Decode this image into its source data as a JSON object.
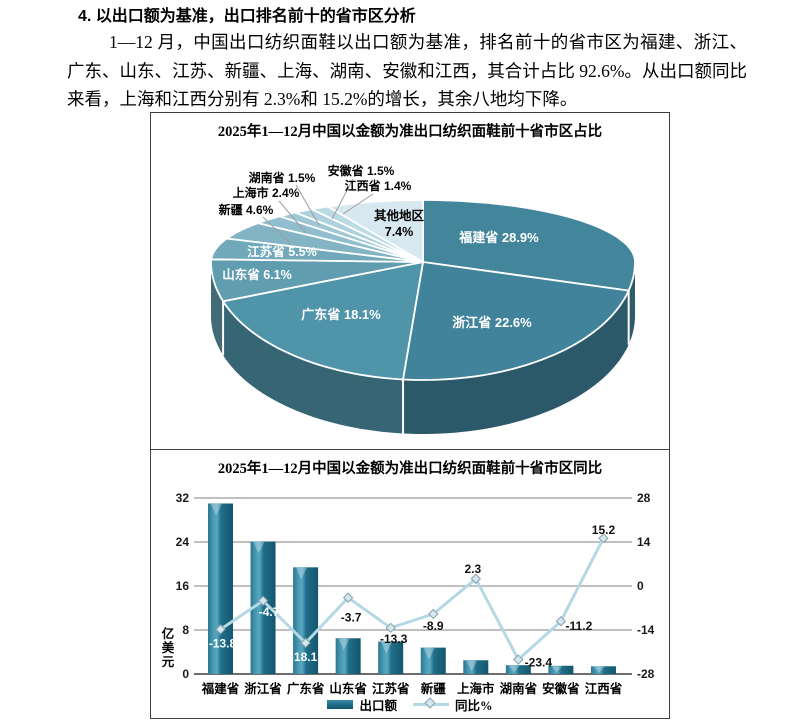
{
  "document": {
    "heading": "4. 以出口额为基准，出口排名前十的省市区分析",
    "paragraph": "1—12 月，中国出口纺织面鞋以出口额为基准，排名前十的省市区为福建、浙江、广东、山东、江苏、新疆、上海、湖南、安徽和江西，其合计占比 92.6%。从出口额同比来看，上海和江西分别有 2.3%和 15.2%的增长，其余八地均下降。"
  },
  "colors": {
    "bar_fill": "#1d6b85",
    "line_fill": "#b4d8e4",
    "grid": "#808080",
    "pie_palette": [
      "#43869c",
      "#40839a",
      "#5094aa",
      "#619db1",
      "#71a9bb",
      "#82b4c4",
      "#90bece",
      "#9fc8d5",
      "#aed1dd",
      "#bcdae4",
      "#d8e8f1"
    ]
  },
  "chart_data": [
    {
      "type": "pie",
      "style": "3d",
      "title": "2025年1—12月中国以金额为准出口纺织面鞋前十省市区占比",
      "unit": "%",
      "legend_position": "none",
      "slices": [
        {
          "label": "福建省",
          "value": 28.9
        },
        {
          "label": "浙江省",
          "value": 22.6
        },
        {
          "label": "广东省",
          "value": 18.1
        },
        {
          "label": "山东省",
          "value": 6.1
        },
        {
          "label": "江苏省",
          "value": 5.5
        },
        {
          "label": "新疆",
          "value": 4.6
        },
        {
          "label": "上海市",
          "value": 2.4
        },
        {
          "label": "湖南省",
          "value": 1.5
        },
        {
          "label": "安徽省",
          "value": 1.5
        },
        {
          "label": "江西省",
          "value": 1.4
        },
        {
          "label": "其他地区",
          "value": 7.4
        }
      ]
    },
    {
      "type": "bar",
      "subtype": "bar+line-two-axes",
      "title": "2025年1—12月中国以金额为准出口纺织面鞋前十省市区同比",
      "categories": [
        "福建省",
        "浙江省",
        "广东省",
        "山东省",
        "江苏省",
        "新疆",
        "上海市",
        "湖南省",
        "安徽省",
        "江西省"
      ],
      "series": [
        {
          "name": "出口额",
          "chart": "bar",
          "axis": "left",
          "unit": "亿美元",
          "values": [
            31.0,
            24.1,
            19.4,
            6.5,
            5.9,
            4.8,
            2.5,
            1.6,
            1.5,
            1.4
          ]
        },
        {
          "name": "同比%",
          "chart": "line",
          "axis": "right",
          "unit": "%",
          "values": [
            -13.8,
            -4.7,
            -18.1,
            -3.7,
            -13.3,
            -8.9,
            2.3,
            -23.4,
            -11.2,
            15.2
          ]
        }
      ],
      "left_axis": {
        "title": "亿美元",
        "ticks": [
          0,
          8,
          16,
          24,
          32
        ],
        "range": [
          0,
          32
        ]
      },
      "right_axis": {
        "title": "",
        "ticks": [
          -28,
          -14,
          0,
          14,
          28
        ],
        "range": [
          -28,
          28
        ]
      },
      "grid": true,
      "legend_position": "bottom"
    }
  ]
}
